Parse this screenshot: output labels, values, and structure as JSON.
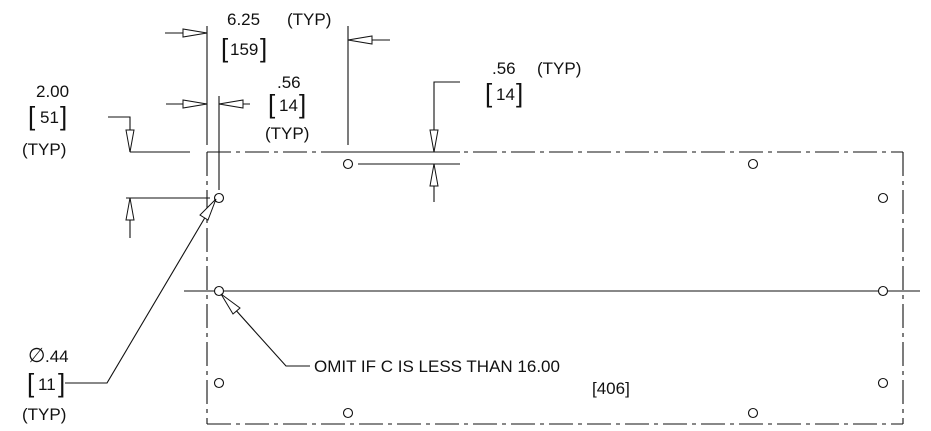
{
  "dimensions": {
    "spacing_value": "6.25",
    "spacing_typ": "(TYP)",
    "spacing_metric": "159",
    "edge_x_value": ".56",
    "edge_x_metric": "14",
    "edge_x_typ": "(TYP)",
    "edge_y_value": ".56",
    "edge_y_typ": "(TYP)",
    "edge_y_metric": "14",
    "left_value": "2.00",
    "left_metric": "51",
    "left_typ": "(TYP)",
    "hole_symbol": "∅",
    "hole_value": ".44",
    "hole_metric": "11",
    "hole_typ": "(TYP)"
  },
  "note": {
    "text": "OMIT IF C IS LESS THAN 16.00",
    "metric": "[406]"
  }
}
